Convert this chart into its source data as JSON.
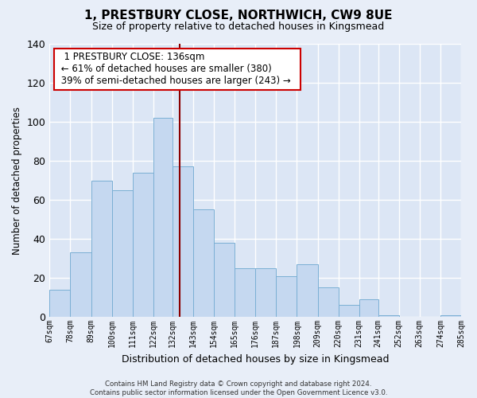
{
  "title": "1, PRESTBURY CLOSE, NORTHWICH, CW9 8UE",
  "subtitle": "Size of property relative to detached houses in Kingsmead",
  "xlabel": "Distribution of detached houses by size in Kingsmead",
  "ylabel": "Number of detached properties",
  "bin_edges": [
    67,
    78,
    89,
    100,
    111,
    122,
    132,
    143,
    154,
    165,
    176,
    187,
    198,
    209,
    220,
    231,
    241,
    252,
    263,
    274,
    285
  ],
  "bar_heights": [
    14,
    33,
    70,
    65,
    74,
    102,
    77,
    55,
    38,
    25,
    25,
    21,
    27,
    15,
    6,
    9,
    1,
    0,
    0,
    1
  ],
  "bar_color": "#c5d8f0",
  "bar_edge_color": "#7aafd4",
  "vline_x": 136,
  "vline_color": "#8b0000",
  "ylim": [
    0,
    140
  ],
  "annotation_title": "1 PRESTBURY CLOSE: 136sqm",
  "annotation_line1": "← 61% of detached houses are smaller (380)",
  "annotation_line2": "39% of semi-detached houses are larger (243) →",
  "annotation_box_color": "#ffffff",
  "annotation_box_edge": "#cc0000",
  "tick_labels": [
    "67sqm",
    "78sqm",
    "89sqm",
    "100sqm",
    "111sqm",
    "122sqm",
    "132sqm",
    "143sqm",
    "154sqm",
    "165sqm",
    "176sqm",
    "187sqm",
    "198sqm",
    "209sqm",
    "220sqm",
    "231sqm",
    "241sqm",
    "252sqm",
    "263sqm",
    "274sqm",
    "285sqm"
  ],
  "footer_line1": "Contains HM Land Registry data © Crown copyright and database right 2024.",
  "footer_line2": "Contains public sector information licensed under the Open Government Licence v3.0.",
  "background_color": "#e8eef8",
  "plot_bg_color": "#dce6f5",
  "grid_color": "#ffffff"
}
